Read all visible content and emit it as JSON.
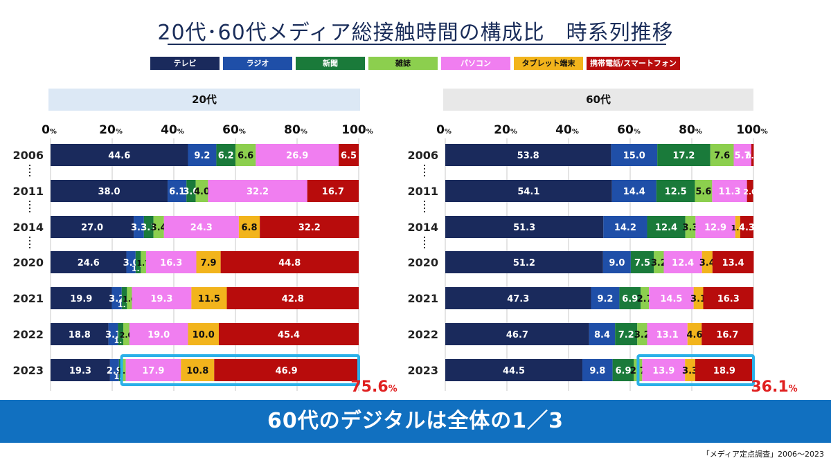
{
  "title": "20代･60代メディア総接触時間の構成比　時系列推移",
  "legend": [
    {
      "label": "テレビ",
      "color": "#1a2a5c"
    },
    {
      "label": "ラジオ",
      "color": "#1f4fa8"
    },
    {
      "label": "新聞",
      "color": "#1a7a3a"
    },
    {
      "label": "雑誌",
      "color": "#8ccf4e"
    },
    {
      "label": "パソコン",
      "color": "#f07ef0"
    },
    {
      "label": "タブレット端末",
      "color": "#f2b41c"
    },
    {
      "label": "携帯電話/スマートフォン",
      "color": "#b80c0c"
    }
  ],
  "panels": [
    {
      "label": "20代",
      "bg": "#dce8f5"
    },
    {
      "label": "60代",
      "bg": "#e8e8e8"
    }
  ],
  "tick_suffix": "%",
  "chart_data": [
    {
      "type": "bar",
      "orientation": "horizontal",
      "stacked": true,
      "title": "20代",
      "xlim": [
        0,
        100
      ],
      "xticks": [
        0,
        20,
        40,
        60,
        80,
        100
      ],
      "categories": [
        "2006",
        "2011",
        "2014",
        "2020",
        "2021",
        "2022",
        "2023"
      ],
      "series": [
        {
          "name": "テレビ",
          "values": [
            44.6,
            38.0,
            27.0,
            24.6,
            19.9,
            18.8,
            19.3
          ]
        },
        {
          "name": "ラジオ",
          "values": [
            9.2,
            6.1,
            3.3,
            3.0,
            3.2,
            3.1,
            2.9
          ]
        },
        {
          "name": "新聞",
          "values": [
            6.2,
            3.0,
            3.1,
            1.7,
            1.7,
            1.7,
            1.1
          ]
        },
        {
          "name": "雑誌",
          "values": [
            6.6,
            4.0,
            3.4,
            1.7,
            1.6,
            2.0,
            1.1
          ]
        },
        {
          "name": "パソコン",
          "values": [
            26.9,
            32.2,
            24.3,
            16.3,
            19.3,
            19.0,
            17.9
          ]
        },
        {
          "name": "タブレット端末",
          "values": [
            null,
            null,
            6.8,
            7.9,
            11.5,
            10.0,
            10.8
          ]
        },
        {
          "name": "携帯電話/スマートフォン",
          "values": [
            6.5,
            16.7,
            32.2,
            44.8,
            42.8,
            45.4,
            46.9
          ]
        }
      ],
      "highlight": {
        "category": "2023",
        "label": "75.6",
        "unit": "%"
      }
    },
    {
      "type": "bar",
      "orientation": "horizontal",
      "stacked": true,
      "title": "60代",
      "xlim": [
        0,
        100
      ],
      "xticks": [
        0,
        20,
        40,
        60,
        80,
        100
      ],
      "categories": [
        "2006",
        "2011",
        "2014",
        "2020",
        "2021",
        "2022",
        "2023"
      ],
      "series": [
        {
          "name": "テレビ",
          "values": [
            53.8,
            54.1,
            51.3,
            51.2,
            47.3,
            46.7,
            44.5
          ]
        },
        {
          "name": "ラジオ",
          "values": [
            15.0,
            14.4,
            14.2,
            9.0,
            9.2,
            8.4,
            9.8
          ]
        },
        {
          "name": "新聞",
          "values": [
            17.2,
            12.5,
            12.4,
            7.5,
            6.9,
            7.2,
            6.9
          ]
        },
        {
          "name": "雑誌",
          "values": [
            7.6,
            5.6,
            3.3,
            3.2,
            2.7,
            3.2,
            2.7
          ]
        },
        {
          "name": "パソコン",
          "values": [
            5.7,
            11.3,
            12.9,
            12.4,
            14.5,
            13.1,
            13.9
          ]
        },
        {
          "name": "タブレット端末",
          "values": [
            null,
            null,
            1.6,
            3.4,
            3.1,
            4.6,
            3.3
          ]
        },
        {
          "name": "携帯電話/スマートフォン",
          "values": [
            0.8,
            2.0,
            4.3,
            13.4,
            16.3,
            16.7,
            18.9
          ]
        }
      ],
      "highlight": {
        "category": "2023",
        "label": "36.1",
        "unit": "%"
      }
    }
  ],
  "banner": {
    "text": "60代のデジタルは全体の1／3",
    "color": "#1170c0"
  },
  "source": "「メディア定点調査」2006～2023"
}
